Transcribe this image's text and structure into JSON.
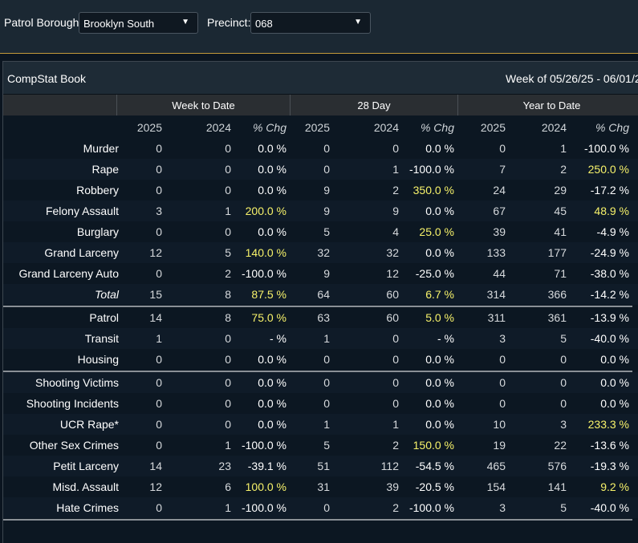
{
  "filters": {
    "borough_label": "Patrol Borough:",
    "borough_value": "Brooklyn South",
    "precinct_label": "Precinct:",
    "precinct_value": "068"
  },
  "panel": {
    "title": "CompStat Book",
    "week_range": "Week of 05/26/25 - 06/01/2"
  },
  "groups": [
    "Week to Date",
    "28 Day",
    "Year to Date"
  ],
  "col_headers": [
    "2025",
    "2024",
    "% Chg",
    "2025",
    "2024",
    "% Chg",
    "2025",
    "2024",
    "% Chg"
  ],
  "highlight_color": "#f7f26a",
  "sections": [
    {
      "rows": [
        {
          "label": "Murder",
          "italic": false,
          "values": [
            "0",
            "0",
            "0.0 %",
            "0",
            "0",
            "0.0 %",
            "0",
            "1",
            "-100.0 %"
          ],
          "hl": [
            false,
            false,
            false
          ]
        },
        {
          "label": "Rape",
          "italic": false,
          "values": [
            "0",
            "0",
            "0.0 %",
            "0",
            "1",
            "-100.0 %",
            "7",
            "2",
            "250.0 %"
          ],
          "hl": [
            false,
            false,
            true
          ]
        },
        {
          "label": "Robbery",
          "italic": false,
          "values": [
            "0",
            "0",
            "0.0 %",
            "9",
            "2",
            "350.0 %",
            "24",
            "29",
            "-17.2 %"
          ],
          "hl": [
            false,
            true,
            false
          ]
        },
        {
          "label": "Felony Assault",
          "italic": false,
          "values": [
            "3",
            "1",
            "200.0 %",
            "9",
            "9",
            "0.0 %",
            "67",
            "45",
            "48.9 %"
          ],
          "hl": [
            true,
            false,
            true
          ]
        },
        {
          "label": "Burglary",
          "italic": false,
          "values": [
            "0",
            "0",
            "0.0 %",
            "5",
            "4",
            "25.0 %",
            "39",
            "41",
            "-4.9 %"
          ],
          "hl": [
            false,
            true,
            false
          ]
        },
        {
          "label": "Grand Larceny",
          "italic": false,
          "values": [
            "12",
            "5",
            "140.0 %",
            "32",
            "32",
            "0.0 %",
            "133",
            "177",
            "-24.9 %"
          ],
          "hl": [
            true,
            false,
            false
          ]
        },
        {
          "label": "Grand Larceny Auto",
          "italic": false,
          "values": [
            "0",
            "2",
            "-100.0 %",
            "9",
            "12",
            "-25.0 %",
            "44",
            "71",
            "-38.0 %"
          ],
          "hl": [
            false,
            false,
            false
          ]
        },
        {
          "label": "Total",
          "italic": true,
          "values": [
            "15",
            "8",
            "87.5 %",
            "64",
            "60",
            "6.7 %",
            "314",
            "366",
            "-14.2 %"
          ],
          "hl": [
            true,
            true,
            false
          ]
        }
      ]
    },
    {
      "rows": [
        {
          "label": "Patrol",
          "italic": false,
          "values": [
            "14",
            "8",
            "75.0 %",
            "63",
            "60",
            "5.0 %",
            "311",
            "361",
            "-13.9 %"
          ],
          "hl": [
            true,
            true,
            false
          ]
        },
        {
          "label": "Transit",
          "italic": false,
          "values": [
            "1",
            "0",
            "- %",
            "1",
            "0",
            "- %",
            "3",
            "5",
            "-40.0 %"
          ],
          "hl": [
            false,
            false,
            false
          ]
        },
        {
          "label": "Housing",
          "italic": false,
          "values": [
            "0",
            "0",
            "0.0 %",
            "0",
            "0",
            "0.0 %",
            "0",
            "0",
            "0.0 %"
          ],
          "hl": [
            false,
            false,
            false
          ]
        }
      ]
    },
    {
      "rows": [
        {
          "label": "Shooting Victims",
          "italic": false,
          "values": [
            "0",
            "0",
            "0.0 %",
            "0",
            "0",
            "0.0 %",
            "0",
            "0",
            "0.0 %"
          ],
          "hl": [
            false,
            false,
            false
          ]
        },
        {
          "label": "Shooting Incidents",
          "italic": false,
          "values": [
            "0",
            "0",
            "0.0 %",
            "0",
            "0",
            "0.0 %",
            "0",
            "0",
            "0.0 %"
          ],
          "hl": [
            false,
            false,
            false
          ]
        },
        {
          "label": "UCR Rape*",
          "italic": false,
          "values": [
            "0",
            "0",
            "0.0 %",
            "1",
            "1",
            "0.0 %",
            "10",
            "3",
            "233.3 %"
          ],
          "hl": [
            false,
            false,
            true
          ]
        },
        {
          "label": "Other Sex Crimes",
          "italic": false,
          "values": [
            "0",
            "1",
            "-100.0 %",
            "5",
            "2",
            "150.0 %",
            "19",
            "22",
            "-13.6 %"
          ],
          "hl": [
            false,
            true,
            false
          ]
        },
        {
          "label": "Petit Larceny",
          "italic": false,
          "values": [
            "14",
            "23",
            "-39.1 %",
            "51",
            "112",
            "-54.5 %",
            "465",
            "576",
            "-19.3 %"
          ],
          "hl": [
            false,
            false,
            false
          ]
        },
        {
          "label": "Misd. Assault",
          "italic": false,
          "values": [
            "12",
            "6",
            "100.0 %",
            "31",
            "39",
            "-20.5 %",
            "154",
            "141",
            "9.2 %"
          ],
          "hl": [
            true,
            false,
            true
          ]
        },
        {
          "label": "Hate Crimes",
          "italic": false,
          "values": [
            "0",
            "1",
            "-100.0 %",
            "0",
            "2",
            "-100.0 %",
            "3",
            "5",
            "-40.0 %"
          ],
          "hl": [
            false,
            false,
            false
          ]
        }
      ]
    }
  ]
}
